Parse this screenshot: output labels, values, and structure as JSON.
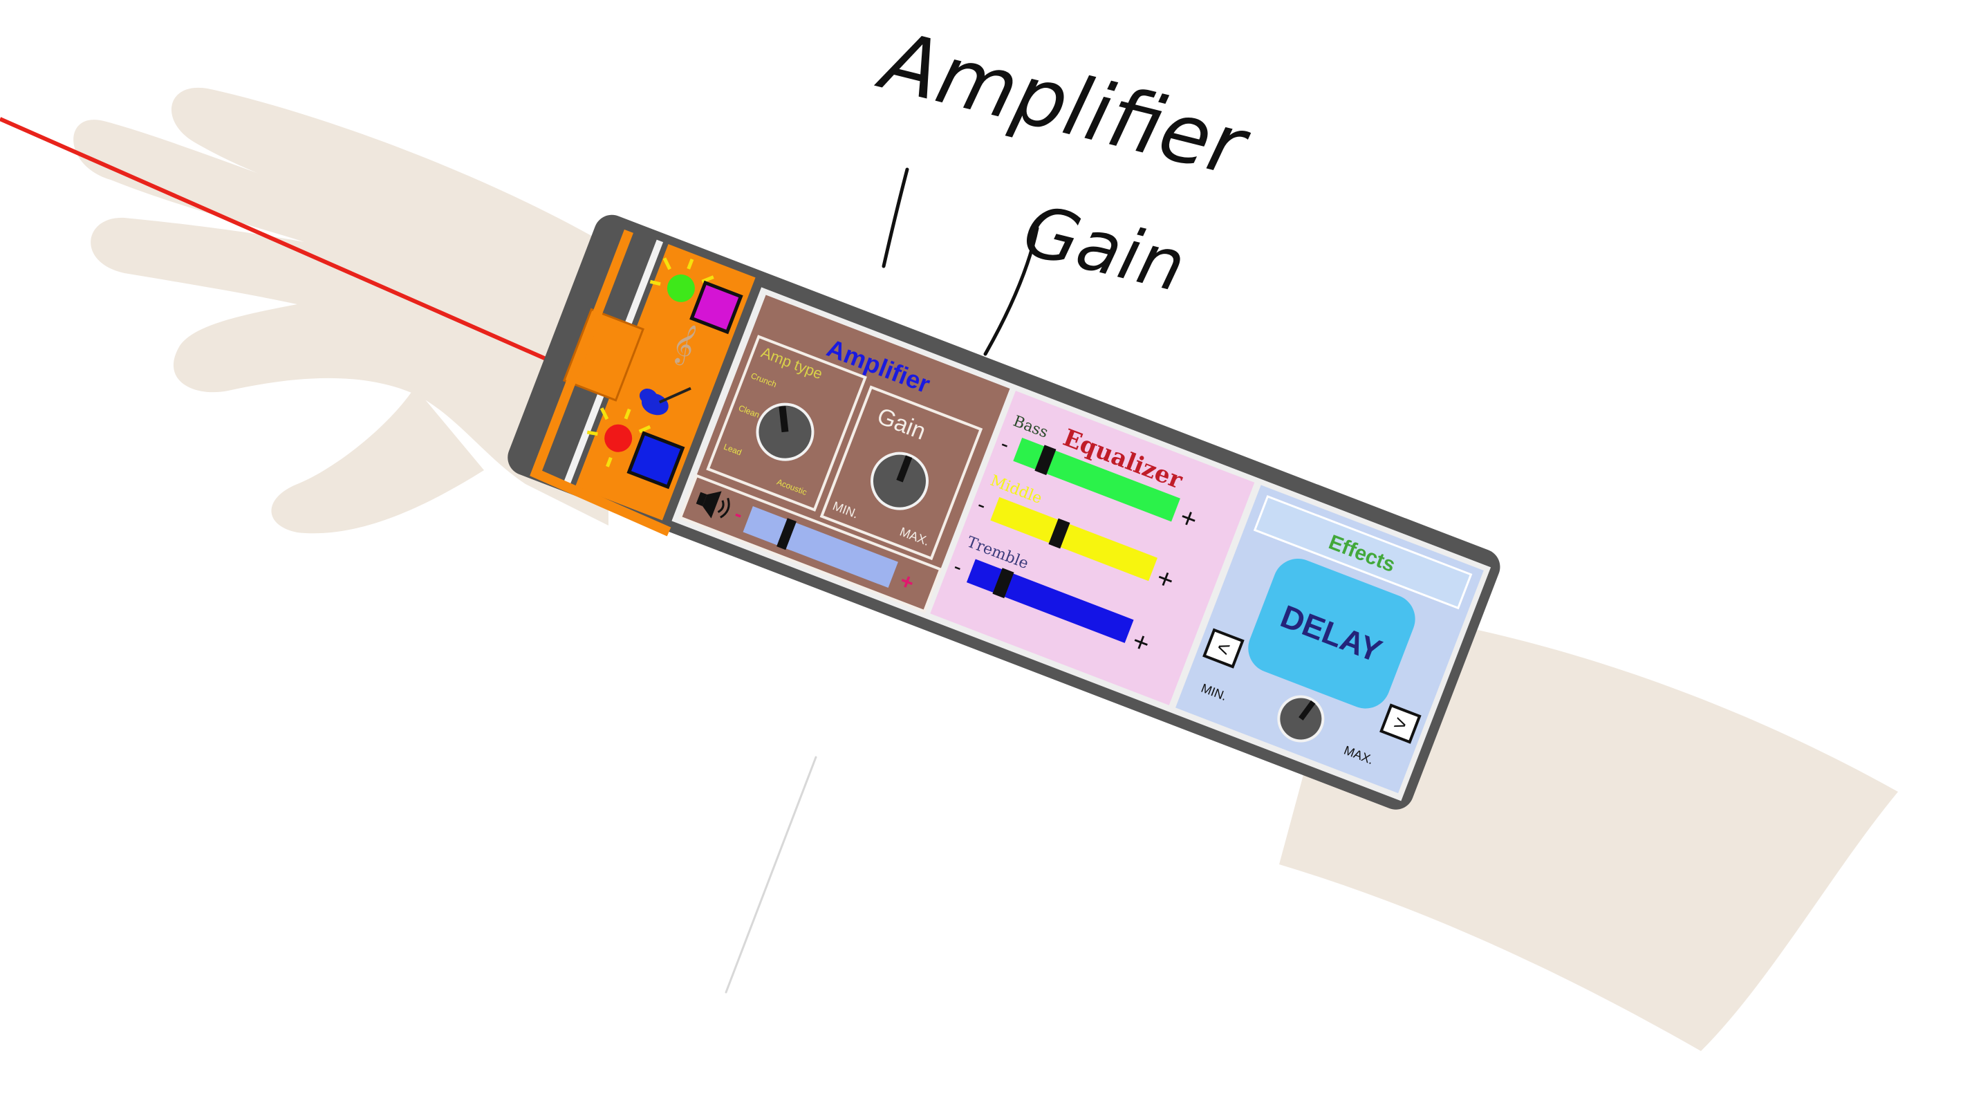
{
  "annotations": {
    "amplifier_note": "Amplifier",
    "gain_note": "Gain"
  },
  "amplifier": {
    "title": "Amplifier",
    "amp_type": {
      "label": "Amp type",
      "options": [
        "Crunch",
        "Clean",
        "Lead",
        "Acoustic"
      ]
    },
    "gain": {
      "label": "Gain",
      "min_label": "MIN.",
      "max_label": "MAX."
    },
    "volume": {
      "minus": "-",
      "plus": "+",
      "level": 0.25
    }
  },
  "equalizer": {
    "title": "Equalizer",
    "bands": [
      {
        "label": "Bass",
        "minus": "-",
        "plus": "+",
        "color": "#2bf24a",
        "level": 0.15
      },
      {
        "label": "Middle",
        "minus": "-",
        "plus": "+",
        "color": "#f7f50e",
        "level": 0.4
      },
      {
        "label": "Tremble",
        "minus": "-",
        "plus": "+",
        "color": "#1414e6",
        "level": 0.18
      }
    ]
  },
  "effects": {
    "title": "Effects",
    "current": "DELAY",
    "prev": "<",
    "next": ">",
    "min_label": "MIN.",
    "max_label": "MAX."
  },
  "colors": {
    "skin": "#efe7dd",
    "device_body": "#555555",
    "orange": "#f7890c",
    "amp_panel": "#9a6d60",
    "eq_panel": "#f2cdec",
    "effects_panel": "#c4d4f2",
    "delay_button": "#48c1ef",
    "laser": "#e8231b",
    "led_green": "#3ee81a",
    "led_red": "#f01818",
    "button_magenta": "#d414d4",
    "button_blue": "#1020e6"
  },
  "icons": [
    "laser-beam",
    "guitar-icon",
    "treble-clef-icon",
    "speaker-icon",
    "knob-icon"
  ]
}
